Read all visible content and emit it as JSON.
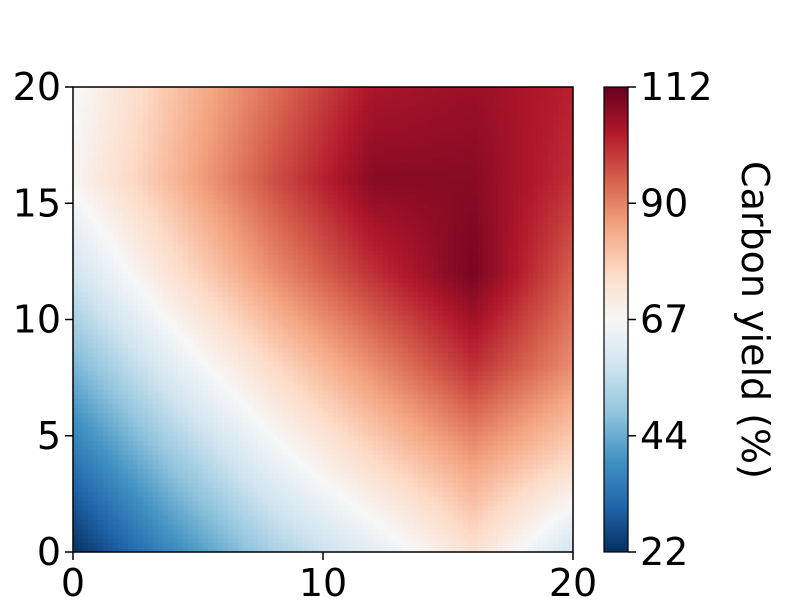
{
  "chart_data": {
    "type": "heatmap",
    "title": "",
    "xlabel": "",
    "ylabel": "",
    "xlim": [
      0,
      20
    ],
    "ylim": [
      0,
      20
    ],
    "x_ticks": [
      "0",
      "10",
      "20"
    ],
    "y_ticks": [
      "0",
      "5",
      "10",
      "15",
      "20"
    ],
    "colormap": "RdBu_r",
    "colorbar": {
      "label": "Carbon yield (%)",
      "range": [
        22,
        112
      ],
      "ticks": [
        "22",
        "44",
        "67",
        "90",
        "112"
      ]
    },
    "z_grid_note_free": true,
    "grid_x": [
      0,
      4,
      8,
      12,
      16,
      20
    ],
    "grid_y": [
      0,
      4,
      8,
      12,
      16,
      20
    ],
    "z": [
      [
        22,
        38,
        52,
        62,
        74,
        58
      ],
      [
        34,
        50,
        64,
        76,
        86,
        76
      ],
      [
        46,
        62,
        76,
        88,
        100,
        88
      ],
      [
        58,
        74,
        88,
        100,
        110,
        94
      ],
      [
        68,
        82,
        96,
        108,
        108,
        100
      ],
      [
        66,
        80,
        92,
        104,
        106,
        102
      ]
    ]
  }
}
